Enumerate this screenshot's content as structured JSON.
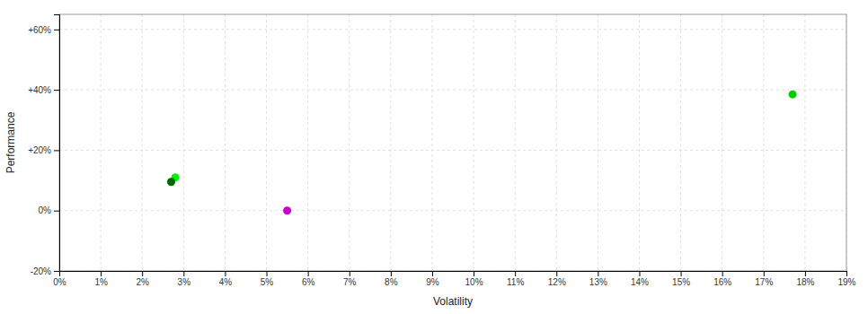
{
  "chart_data": {
    "type": "scatter",
    "xlabel": "Volatility",
    "ylabel": "Performance",
    "x": [
      0.028,
      0.027,
      0.055,
      0.177
    ],
    "values": [
      0.11,
      0.095,
      0.0,
      0.385
    ],
    "colors": [
      "#00ee00",
      "#006600",
      "#cc00cc",
      "#00cc00"
    ],
    "marker": "circle",
    "xlim": [
      0.0,
      0.19
    ],
    "ylim": [
      -0.2,
      0.65
    ],
    "xticks": [
      {
        "value": 0.0,
        "label": "0%"
      },
      {
        "value": 0.01,
        "label": "1%"
      },
      {
        "value": 0.02,
        "label": "2%"
      },
      {
        "value": 0.03,
        "label": "3%"
      },
      {
        "value": 0.04,
        "label": "4%"
      },
      {
        "value": 0.05,
        "label": "5%"
      },
      {
        "value": 0.06,
        "label": "6%"
      },
      {
        "value": 0.07,
        "label": "7%"
      },
      {
        "value": 0.08,
        "label": "8%"
      },
      {
        "value": 0.09,
        "label": "9%"
      },
      {
        "value": 0.1,
        "label": "10%"
      },
      {
        "value": 0.11,
        "label": "11%"
      },
      {
        "value": 0.12,
        "label": "12%"
      },
      {
        "value": 0.13,
        "label": "13%"
      },
      {
        "value": 0.14,
        "label": "14%"
      },
      {
        "value": 0.15,
        "label": "15%"
      },
      {
        "value": 0.16,
        "label": "16%"
      },
      {
        "value": 0.17,
        "label": "17%"
      },
      {
        "value": 0.18,
        "label": "18%"
      },
      {
        "value": 0.19,
        "label": "19%"
      }
    ],
    "yticks": [
      {
        "value": -0.2,
        "label": "-20%"
      },
      {
        "value": 0.0,
        "label": "0%"
      },
      {
        "value": 0.2,
        "label": "+20%"
      },
      {
        "value": 0.4,
        "label": "+40%"
      },
      {
        "value": 0.6,
        "label": "+60%"
      }
    ],
    "grid": true
  }
}
